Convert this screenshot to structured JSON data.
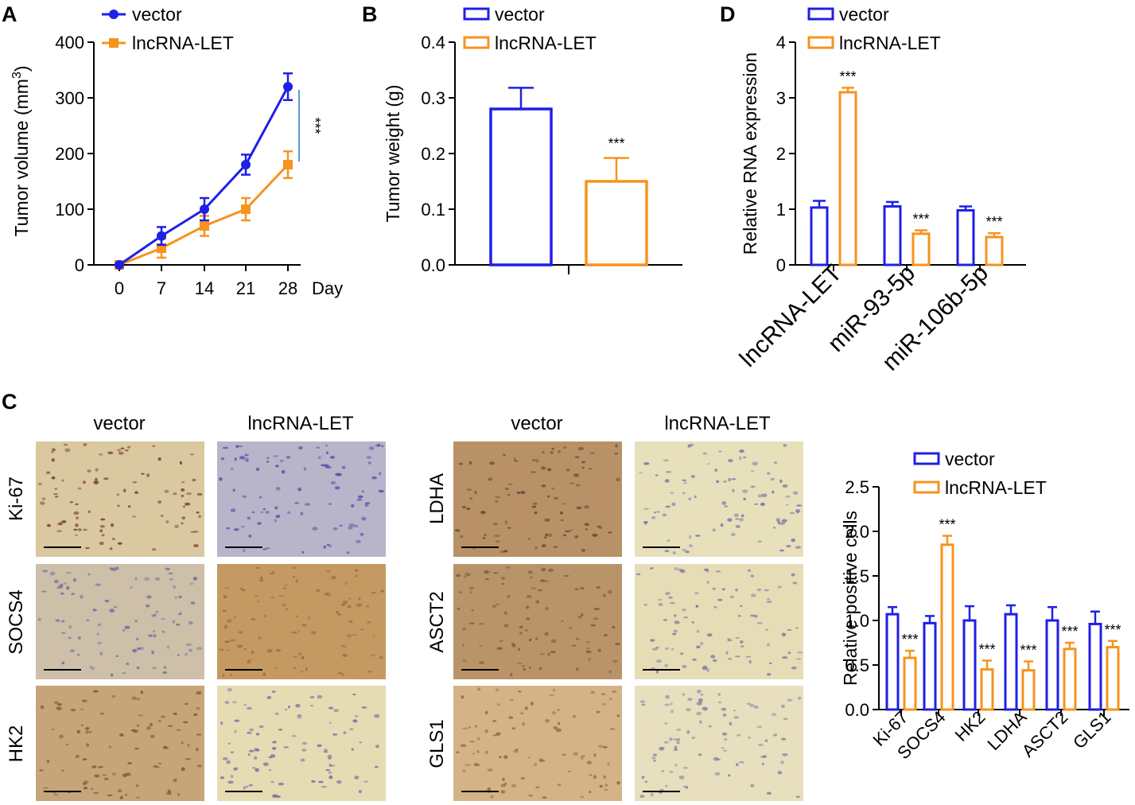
{
  "colors": {
    "vector": "#1f1fe6",
    "lncrna": "#f7931e",
    "sig_line": "#5b9bd5"
  },
  "panels": {
    "a": "A",
    "b": "B",
    "c": "C",
    "d": "D"
  },
  "chart_data": [
    {
      "id": "A",
      "type": "line",
      "x": [
        0,
        7,
        14,
        21,
        28
      ],
      "xunit": "Day",
      "ylabel_main": "Tumor volume (mm",
      "ylabel_sup": "3",
      "ylabel_end": ")",
      "ylim": [
        0,
        400
      ],
      "yticks": [
        "0",
        "100",
        "200",
        "300",
        "400"
      ],
      "xticks": [
        "0",
        "7",
        "14",
        "21",
        "28"
      ],
      "series": [
        {
          "name": "vector",
          "values": [
            0,
            52,
            100,
            180,
            320
          ],
          "err": [
            0,
            16,
            20,
            18,
            24
          ]
        },
        {
          "name": "lncRNA-LET",
          "values": [
            0,
            30,
            70,
            100,
            180
          ],
          "err": [
            0,
            17,
            18,
            20,
            24
          ]
        }
      ],
      "sig": "***"
    },
    {
      "id": "B",
      "type": "bar",
      "ylabel": "Tumor weight (g)",
      "ylim": [
        0,
        0.4
      ],
      "yticks": [
        "0.0",
        "0.1",
        "0.2",
        "0.3",
        "0.4"
      ],
      "series": [
        {
          "name": "vector",
          "value": 0.28,
          "err": 0.038
        },
        {
          "name": "lncRNA-LET",
          "value": 0.15,
          "err": 0.042
        }
      ],
      "sig": "***"
    },
    {
      "id": "D",
      "type": "bar",
      "ylabel": "Relative RNA expression",
      "ylim": [
        0,
        4
      ],
      "yticks": [
        "0",
        "1",
        "2",
        "3",
        "4"
      ],
      "categories": [
        "lncRNA-LET",
        "miR-93-5p",
        "miR-106b-5p"
      ],
      "series": [
        {
          "name": "vector",
          "values": [
            1.03,
            1.05,
            0.98
          ],
          "err": [
            0.12,
            0.08,
            0.07
          ]
        },
        {
          "name": "lncRNA-LET",
          "values": [
            3.1,
            0.56,
            0.5
          ],
          "err": [
            0.08,
            0.06,
            0.07
          ]
        }
      ],
      "sig": [
        "***",
        "***",
        "***"
      ]
    },
    {
      "id": "C-quant",
      "type": "bar",
      "ylabel": "Relative positive cells",
      "ylim": [
        0,
        2.5
      ],
      "yticks": [
        "0.0",
        "0.5",
        "1.0",
        "1.5",
        "2.0",
        "2.5"
      ],
      "categories": [
        "Ki-67",
        "SOCS4",
        "HK2",
        "LDHA",
        "ASCT2",
        "GLS1"
      ],
      "series": [
        {
          "name": "vector",
          "values": [
            1.07,
            0.97,
            1.0,
            1.07,
            1.0,
            0.96
          ],
          "err": [
            0.08,
            0.08,
            0.16,
            0.1,
            0.15,
            0.14
          ]
        },
        {
          "name": "lncRNA-LET",
          "values": [
            0.58,
            1.85,
            0.45,
            0.44,
            0.68,
            0.7
          ],
          "err": [
            0.08,
            0.1,
            0.1,
            0.1,
            0.07,
            0.07
          ]
        }
      ],
      "sig": [
        "***",
        "***",
        "***",
        "***",
        "***",
        "***"
      ]
    }
  ],
  "micrographs": {
    "left_group": {
      "col1": "vector",
      "col2": "lncRNA-LET",
      "rows": [
        "Ki-67",
        "SOCS4",
        "HK2"
      ]
    },
    "right_group": {
      "col1": "vector",
      "col2": "lncRNA-LET",
      "rows": [
        "LDHA",
        "ASCT2",
        "GLS1"
      ]
    },
    "tones": [
      [
        "#d9c8a0",
        "#b8b4c9"
      ],
      [
        "#cdbfa8",
        "#c49a62"
      ],
      [
        "#c7a57a",
        "#e6dcb4"
      ],
      [
        "#b89266",
        "#e8e0bb"
      ],
      [
        "#b99468",
        "#e6ddb6"
      ],
      [
        "#d4b486",
        "#e7dfbd"
      ]
    ],
    "dots": [
      [
        "#7a3f2a",
        "#5254a6"
      ],
      [
        "#6e6fa2",
        "#a46a3c"
      ],
      [
        "#8a5530",
        "#7c6da0"
      ],
      [
        "#6b4a40",
        "#7b78a8"
      ],
      [
        "#7d5a44",
        "#7f7aa5"
      ],
      [
        "#8e6a4a",
        "#8784a8"
      ]
    ]
  }
}
